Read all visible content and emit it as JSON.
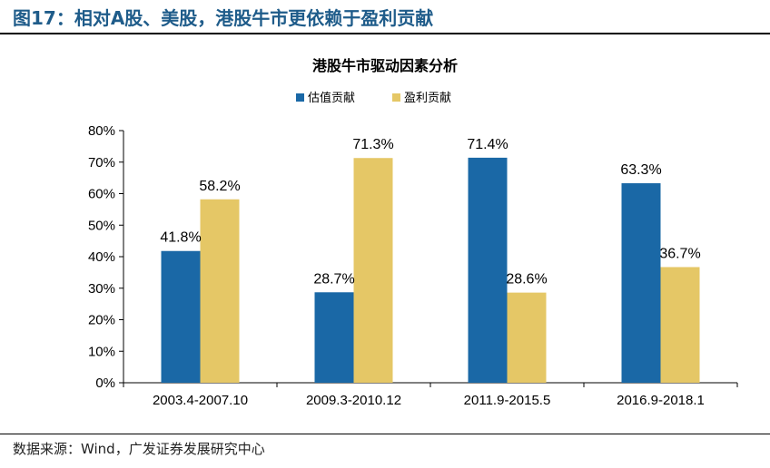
{
  "figure": {
    "title": "图17：相对A股、美股，港股牛市更依赖于盈利贡献",
    "source": "数据来源：Wind，广发证券发展研究中心"
  },
  "colors": {
    "series_1": "#1a68a6",
    "series_2": "#e5c766",
    "axis": "#000000"
  },
  "chart_data": {
    "type": "bar",
    "title": "港股牛市驱动因素分析",
    "categories": [
      "2003.4-2007.10",
      "2009.3-2010.12",
      "2011.9-2015.5",
      "2016.9-2018.1"
    ],
    "series": [
      {
        "name": "估值贡献",
        "values": [
          41.8,
          28.7,
          71.4,
          63.3
        ],
        "labels": [
          "41.8%",
          "28.7%",
          "71.4%",
          "63.3%"
        ]
      },
      {
        "name": "盈利贡献",
        "values": [
          58.2,
          71.3,
          28.6,
          36.7
        ],
        "labels": [
          "58.2%",
          "71.3%",
          "28.6%",
          "36.7%"
        ]
      }
    ],
    "ylim": [
      0,
      80
    ],
    "yticks": [
      "0%",
      "10%",
      "20%",
      "30%",
      "40%",
      "50%",
      "60%",
      "70%",
      "80%"
    ],
    "legend": "top-center",
    "grid": false
  }
}
